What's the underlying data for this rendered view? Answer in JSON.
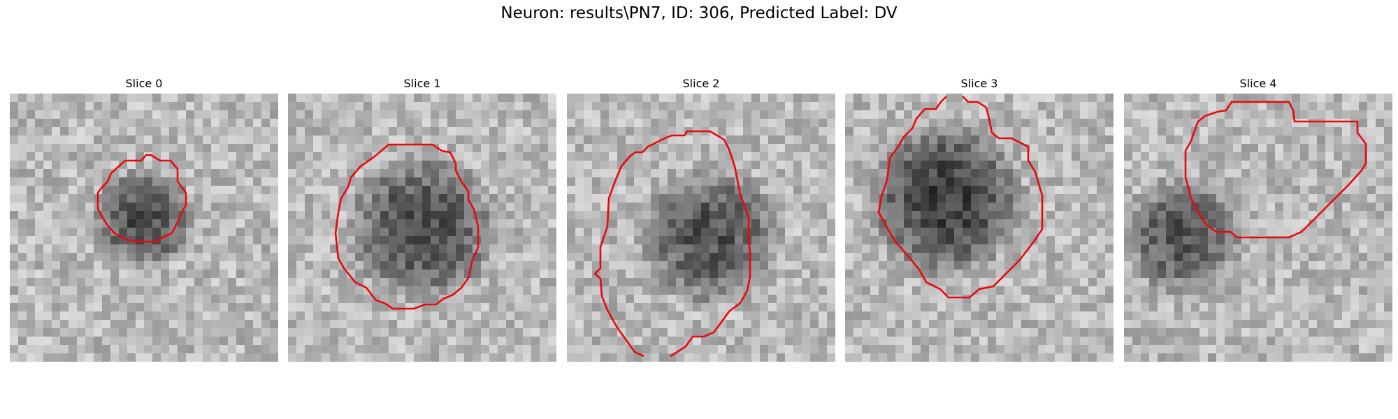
{
  "figure": {
    "title": "Neuron: results\\PN7, ID: 306, Predicted Label: DV"
  },
  "colors": {
    "contour": "#e8090c",
    "colormap": "gray"
  },
  "slices": [
    {
      "label": "Slice 0"
    },
    {
      "label": "Slice 1"
    },
    {
      "label": "Slice 2"
    },
    {
      "label": "Slice 3"
    },
    {
      "label": "Slice 4"
    }
  ]
}
